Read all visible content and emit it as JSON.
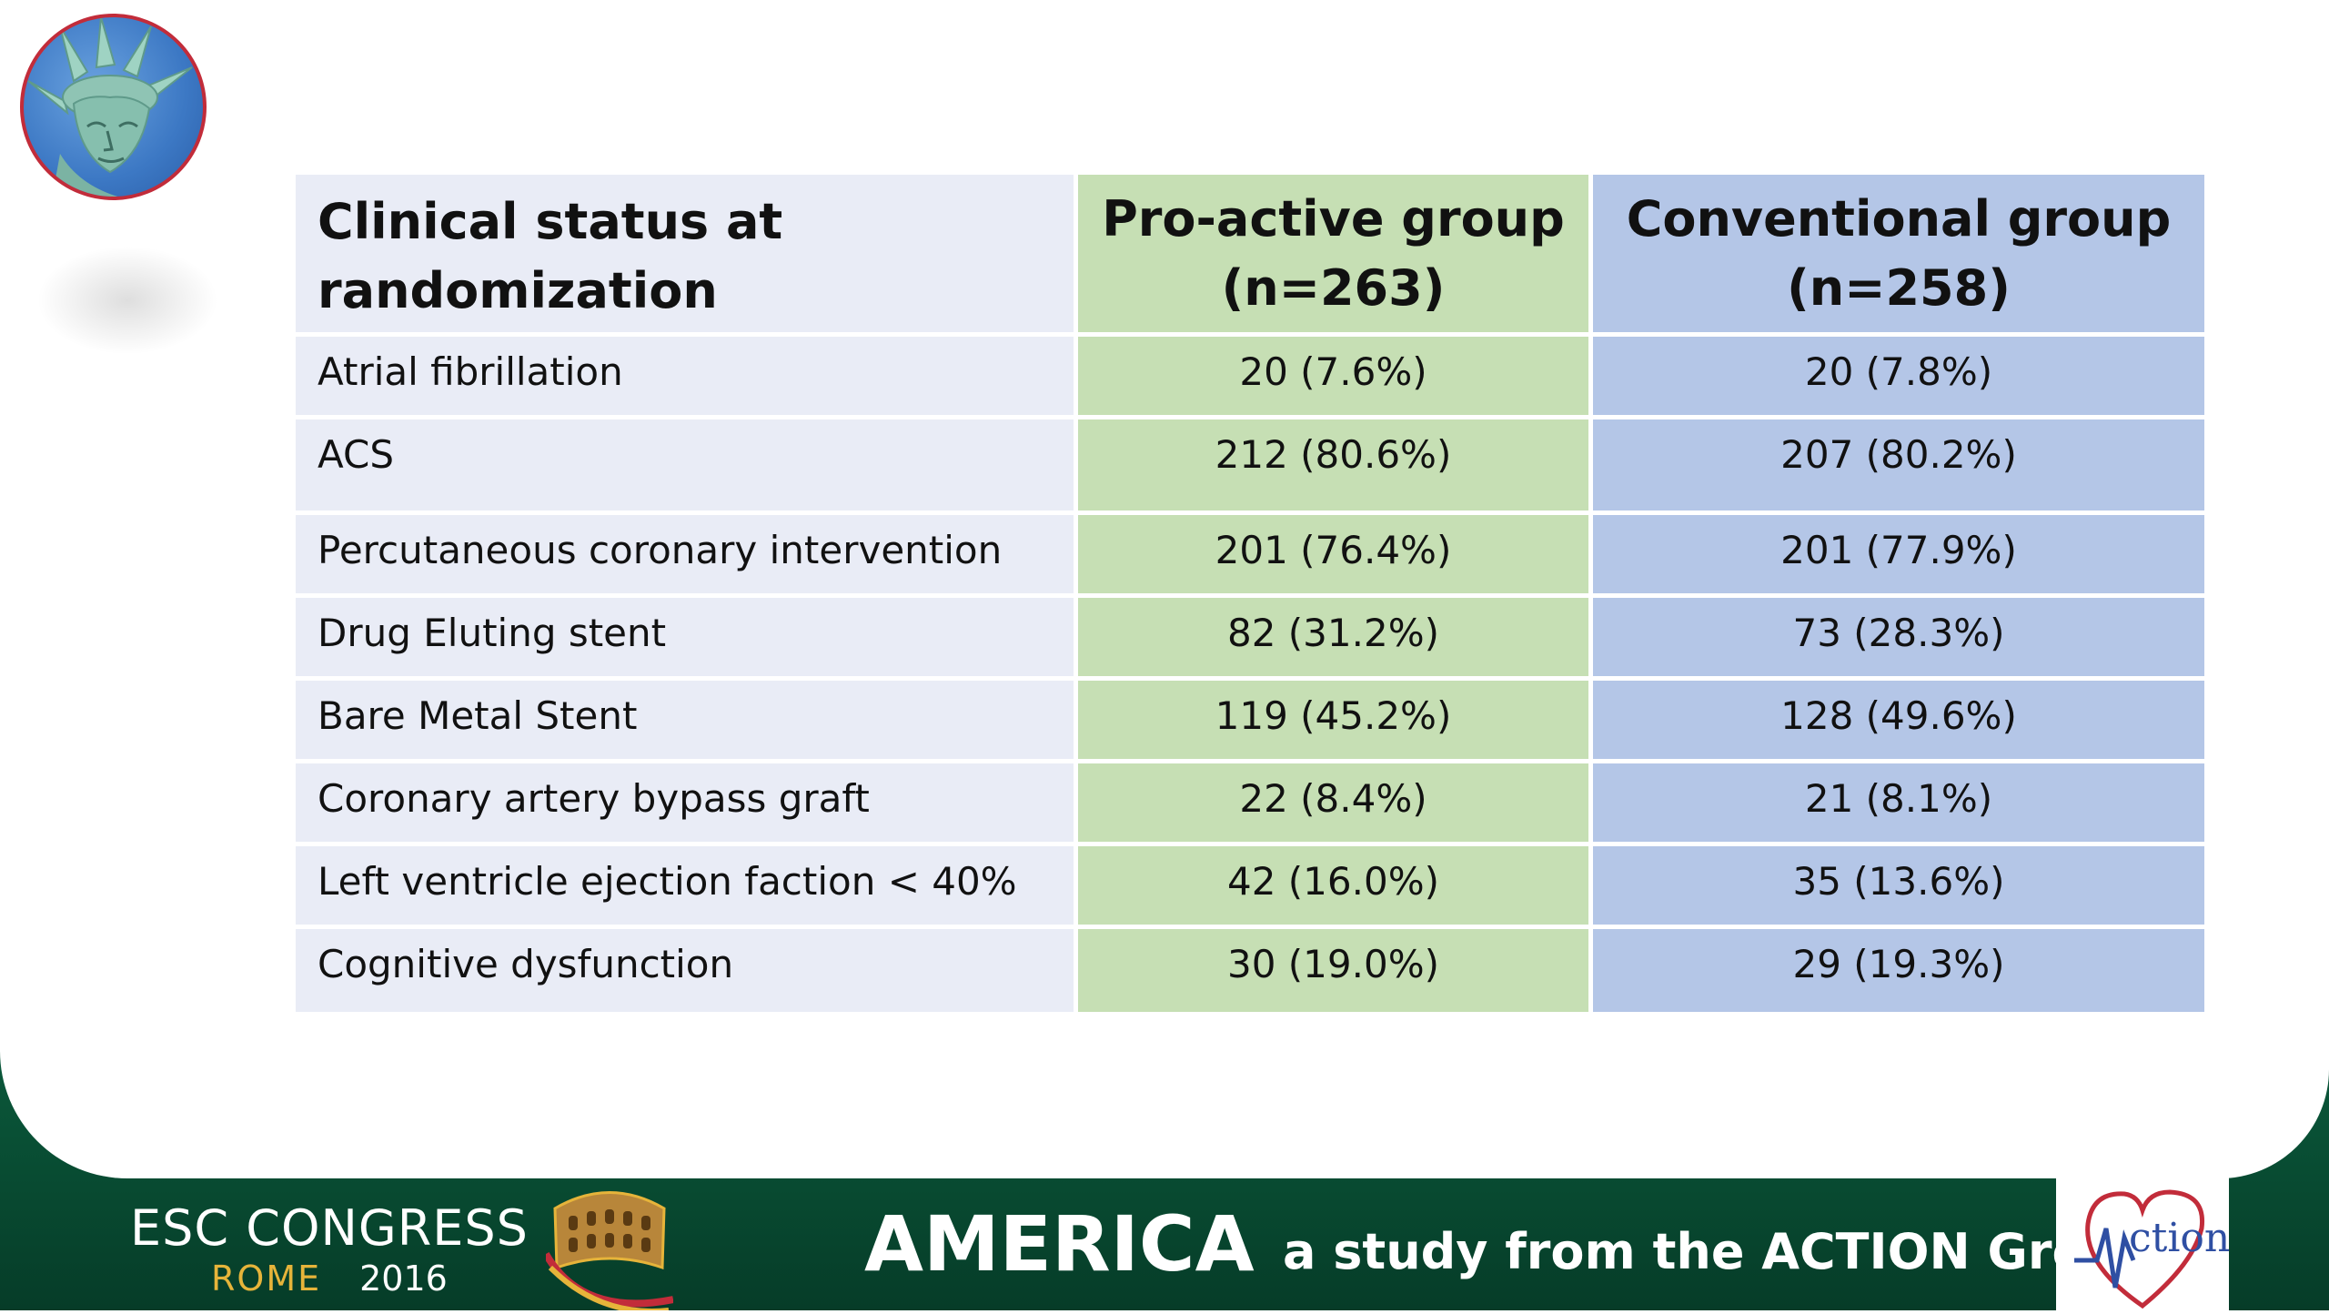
{
  "table": {
    "headers": {
      "col1": "Clinical status at randomization",
      "col2": "Pro-active group (n=263)",
      "col3": "Conventional group (n=258)"
    },
    "rows": [
      {
        "label": "Atrial fibrillation",
        "proactive": "20 (7.6%)",
        "conventional": "20 (7.8%)"
      },
      {
        "label": "ACS",
        "proactive": "212 (80.6%)",
        "conventional": "207 (80.2%)"
      },
      {
        "label": "Percutaneous coronary intervention",
        "proactive": "201 (76.4%)",
        "conventional": "201 (77.9%)"
      },
      {
        "label": "Drug Eluting stent",
        "proactive": "82 (31.2%)",
        "conventional": "73 (28.3%)"
      },
      {
        "label": "Bare Metal Stent",
        "proactive": "119 (45.2%)",
        "conventional": "128 (49.6%)"
      },
      {
        "label": "Coronary artery bypass graft",
        "proactive": "22 (8.4%)",
        "conventional": "21 (8.1%)"
      },
      {
        "label": "Left ventricle ejection faction < 40%",
        "proactive": "42 (16.0%)",
        "conventional": "35 (13.6%)"
      },
      {
        "label": "Cognitive dysfunction",
        "proactive": "30 (19.0%)",
        "conventional": "29 (19.3%)"
      }
    ]
  },
  "footer": {
    "congress": "ESC CONGRESS",
    "city": "ROME",
    "year": "2016",
    "study_name": "AMERICA",
    "tagline": "a study from the ACTION Group",
    "logo_text": "ction"
  },
  "colors": {
    "footer_green": "#0b5a3c",
    "col1_bg": "#e9ecf6",
    "col2_bg": "#c6dfb4",
    "col3_bg": "#b4c6e7",
    "accent_gold": "#e6b43a",
    "logo_red": "#c22c3a",
    "logo_blue": "#2f4fa3"
  },
  "icons": {
    "medallion": "statue-of-liberty-icon",
    "colosseum": "colosseum-icon",
    "logo": "action-heart-logo-icon"
  }
}
